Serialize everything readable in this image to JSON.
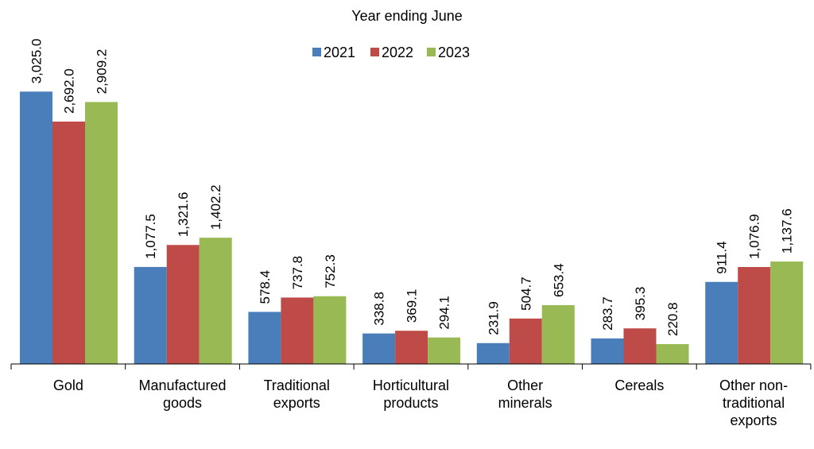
{
  "chart_data": {
    "type": "bar",
    "title": "",
    "legend_title": "Year ending June",
    "legend_position": "top",
    "xlabel": "",
    "ylabel": "",
    "ylim": [
      0,
      3500
    ],
    "grid": false,
    "categories": [
      [
        "Gold"
      ],
      [
        "Manufactured",
        "goods"
      ],
      [
        "Traditional",
        "exports"
      ],
      [
        "Horticultural",
        "products"
      ],
      [
        "Other",
        "minerals"
      ],
      [
        "Cereals"
      ],
      [
        "Other non-",
        "traditional",
        "exports"
      ]
    ],
    "series": [
      {
        "name": "2021",
        "color": "#4a7ebb",
        "values": [
          3025.0,
          1077.5,
          578.4,
          338.8,
          231.9,
          283.7,
          911.4
        ],
        "labels": [
          "3,025.0",
          "1,077.5",
          "578.4",
          "338.8",
          "231.9",
          "283.7",
          "911.4"
        ]
      },
      {
        "name": "2022",
        "color": "#be4b48",
        "values": [
          2692.0,
          1321.6,
          737.8,
          369.1,
          504.7,
          395.3,
          1076.9
        ],
        "labels": [
          "2,692.0",
          "1,321.6",
          "737.8",
          "369.1",
          "504.7",
          "395.3",
          "1,076.9"
        ]
      },
      {
        "name": "2023",
        "color": "#98b954",
        "values": [
          2909.2,
          1402.2,
          752.3,
          294.1,
          653.4,
          220.8,
          1137.6
        ],
        "labels": [
          "2,909.2",
          "1,402.2",
          "752.3",
          "294.1",
          "653.4",
          "220.8",
          "1,137.6"
        ]
      }
    ]
  }
}
